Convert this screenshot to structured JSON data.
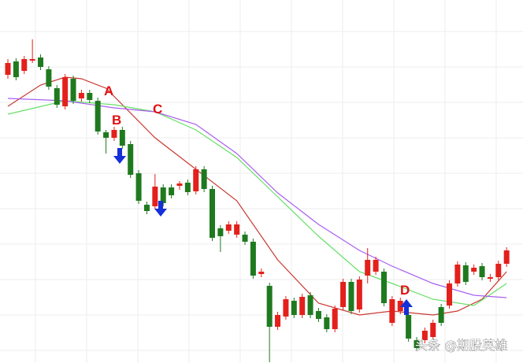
{
  "chart_data": {
    "type": "candlestick",
    "ylim": [
      0,
      461
    ],
    "up_color": "#e3201b",
    "down_color": "#1f7a1f",
    "candles": [
      {
        "open": 366,
        "high": 386,
        "low": 361,
        "close": 381
      },
      {
        "open": 383,
        "high": 387,
        "low": 359,
        "close": 363
      },
      {
        "open": 371,
        "high": 390,
        "low": 367,
        "close": 386
      },
      {
        "open": 384,
        "high": 411,
        "low": 381,
        "close": 386
      },
      {
        "open": 388,
        "high": 392,
        "low": 372,
        "close": 376
      },
      {
        "open": 373,
        "high": 377,
        "low": 347,
        "close": 351
      },
      {
        "open": 349,
        "high": 353,
        "low": 324,
        "close": 328
      },
      {
        "open": 326,
        "high": 367,
        "low": 322,
        "close": 363
      },
      {
        "open": 361,
        "high": 365,
        "low": 329,
        "close": 333
      },
      {
        "open": 336,
        "high": 347,
        "low": 332,
        "close": 343
      },
      {
        "open": 343,
        "high": 347,
        "low": 330,
        "close": 334
      },
      {
        "open": 333,
        "high": 337,
        "low": 290,
        "close": 294
      },
      {
        "open": 293,
        "high": 296,
        "low": 266,
        "close": 286
      },
      {
        "open": 286,
        "high": 300,
        "low": 282,
        "close": 296
      },
      {
        "open": 296,
        "high": 300,
        "low": 272,
        "close": 276
      },
      {
        "open": 278,
        "high": 282,
        "low": 235,
        "close": 239
      },
      {
        "open": 241,
        "high": 245,
        "low": 202,
        "close": 206
      },
      {
        "open": 201,
        "high": 205,
        "low": 189,
        "close": 193
      },
      {
        "open": 199,
        "high": 240,
        "low": 195,
        "close": 224
      },
      {
        "open": 223,
        "high": 227,
        "low": 199,
        "close": 203
      },
      {
        "open": 223,
        "high": 227,
        "low": 209,
        "close": 213
      },
      {
        "open": 225,
        "high": 231,
        "low": 220,
        "close": 228
      },
      {
        "open": 229,
        "high": 233,
        "low": 213,
        "close": 217
      },
      {
        "open": 218,
        "high": 250,
        "low": 214,
        "close": 246
      },
      {
        "open": 246,
        "high": 250,
        "low": 217,
        "close": 221
      },
      {
        "open": 221,
        "high": 225,
        "low": 155,
        "close": 159
      },
      {
        "open": 171,
        "high": 175,
        "low": 141,
        "close": 161
      },
      {
        "open": 168,
        "high": 180,
        "low": 164,
        "close": 176
      },
      {
        "open": 163,
        "high": 180,
        "low": 159,
        "close": 176
      },
      {
        "open": 163,
        "high": 167,
        "low": 150,
        "close": 154
      },
      {
        "open": 154,
        "high": 158,
        "low": 107,
        "close": 111
      },
      {
        "open": 113,
        "high": 120,
        "low": 109,
        "close": 116
      },
      {
        "open": 98,
        "high": 102,
        "low": 1,
        "close": 46
      },
      {
        "open": 46,
        "high": 65,
        "low": 42,
        "close": 61
      },
      {
        "open": 59,
        "high": 85,
        "low": 55,
        "close": 81
      },
      {
        "open": 79,
        "high": 83,
        "low": 57,
        "close": 61
      },
      {
        "open": 61,
        "high": 88,
        "low": 57,
        "close": 84
      },
      {
        "open": 86,
        "high": 90,
        "low": 57,
        "close": 61
      },
      {
        "open": 66,
        "high": 70,
        "low": 52,
        "close": 56
      },
      {
        "open": 58,
        "high": 62,
        "low": 39,
        "close": 43
      },
      {
        "open": 43,
        "high": 73,
        "low": 39,
        "close": 69
      },
      {
        "open": 71,
        "high": 107,
        "low": 67,
        "close": 103
      },
      {
        "open": 103,
        "high": 107,
        "low": 62,
        "close": 66
      },
      {
        "open": 68,
        "high": 110,
        "low": 64,
        "close": 106
      },
      {
        "open": 111,
        "high": 146,
        "low": 101,
        "close": 131
      },
      {
        "open": 116,
        "high": 135,
        "low": 112,
        "close": 131
      },
      {
        "open": 116,
        "high": 120,
        "low": 72,
        "close": 76
      },
      {
        "open": 51,
        "high": 85,
        "low": 47,
        "close": 81
      },
      {
        "open": 66,
        "high": 83,
        "low": 62,
        "close": 79
      },
      {
        "open": 61,
        "high": 65,
        "low": 27,
        "close": 31
      },
      {
        "open": 29,
        "high": 33,
        "low": 15,
        "close": 19
      },
      {
        "open": 29,
        "high": 45,
        "low": 25,
        "close": 41
      },
      {
        "open": 33,
        "high": 55,
        "low": 29,
        "close": 51
      },
      {
        "open": 71,
        "high": 75,
        "low": 47,
        "close": 51
      },
      {
        "open": 73,
        "high": 105,
        "low": 69,
        "close": 101
      },
      {
        "open": 101,
        "high": 129,
        "low": 97,
        "close": 125
      },
      {
        "open": 124,
        "high": 128,
        "low": 99,
        "close": 103
      },
      {
        "open": 116,
        "high": 125,
        "low": 112,
        "close": 121
      },
      {
        "open": 123,
        "high": 127,
        "low": 105,
        "close": 109
      },
      {
        "open": 107,
        "high": 113,
        "low": 103,
        "close": 109
      },
      {
        "open": 109,
        "high": 130,
        "low": 105,
        "close": 126
      },
      {
        "open": 126,
        "high": 147,
        "low": 122,
        "close": 143
      }
    ],
    "series": [
      {
        "color": "#c83a32",
        "x": [
          0,
          4,
          7,
          9,
          12,
          18,
          23,
          28,
          33,
          38,
          43,
          47,
          52,
          55,
          58,
          61
        ],
        "values": [
          326,
          353,
          363,
          361,
          349,
          286,
          246,
          206,
          131,
          76,
          61,
          66,
          61,
          66,
          81,
          116
        ]
      },
      {
        "color": "#66e066",
        "x": [
          0,
          7,
          13,
          18,
          23,
          28,
          33,
          38,
          43,
          47,
          52,
          57,
          61
        ],
        "values": [
          316,
          333,
          328,
          319,
          296,
          261,
          211,
          161,
          116,
          101,
          81,
          73,
          101
        ]
      },
      {
        "color": "#a95ff0",
        "x": [
          0,
          7,
          13,
          18,
          23,
          28,
          33,
          38,
          43,
          47,
          52,
          57,
          61
        ],
        "values": [
          336,
          333,
          324,
          319,
          303,
          266,
          216,
          176,
          143,
          123,
          101,
          86,
          83
        ]
      }
    ],
    "annotations": [
      "A",
      "B",
      "C",
      "D"
    ],
    "watermark": "头条 @期股英雄"
  }
}
